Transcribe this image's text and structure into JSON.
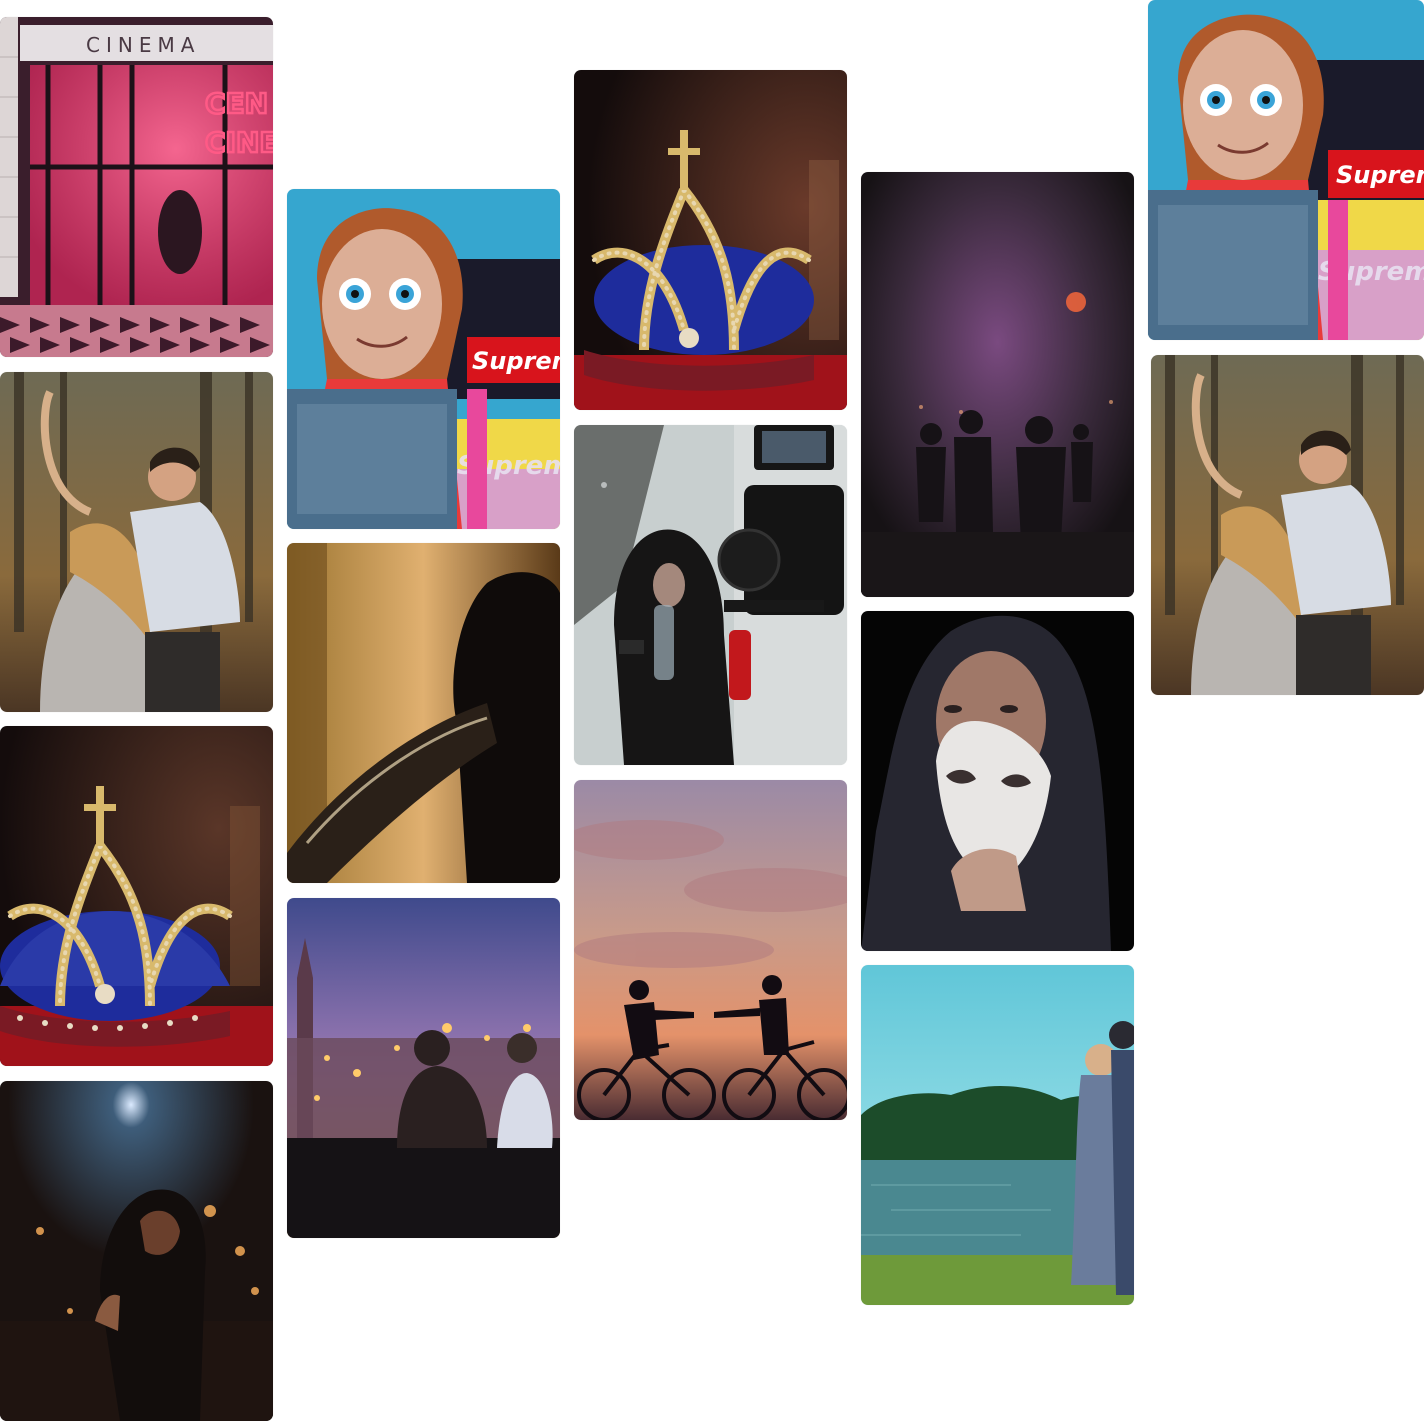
{
  "gallery": {
    "tiles": [
      {
        "id": "cinema",
        "scene": "cinema",
        "sign": "CINEMA",
        "neon": [
          "CEN",
          "CINE"
        ]
      },
      {
        "id": "dancing-couple",
        "scene": "dance"
      },
      {
        "id": "crown",
        "scene": "crown"
      },
      {
        "id": "night-woman",
        "scene": "nightwoman"
      },
      {
        "id": "doll",
        "scene": "doll",
        "brand": [
          "Supreme",
          "Supreme"
        ]
      },
      {
        "id": "silhouette-man",
        "scene": "silhouette"
      },
      {
        "id": "city-couple",
        "scene": "city"
      },
      {
        "id": "crown-2",
        "scene": "crown"
      },
      {
        "id": "camera-shoot",
        "scene": "camera"
      },
      {
        "id": "bikers-sunset",
        "scene": "bikers"
      },
      {
        "id": "foggy-crowd",
        "scene": "fog"
      },
      {
        "id": "mask-man",
        "scene": "mask"
      },
      {
        "id": "lake-couple",
        "scene": "lake"
      },
      {
        "id": "doll-2",
        "scene": "doll",
        "brand": [
          "Supreme",
          "Supreme"
        ]
      },
      {
        "id": "dancing-couple-2",
        "scene": "dance"
      }
    ]
  }
}
